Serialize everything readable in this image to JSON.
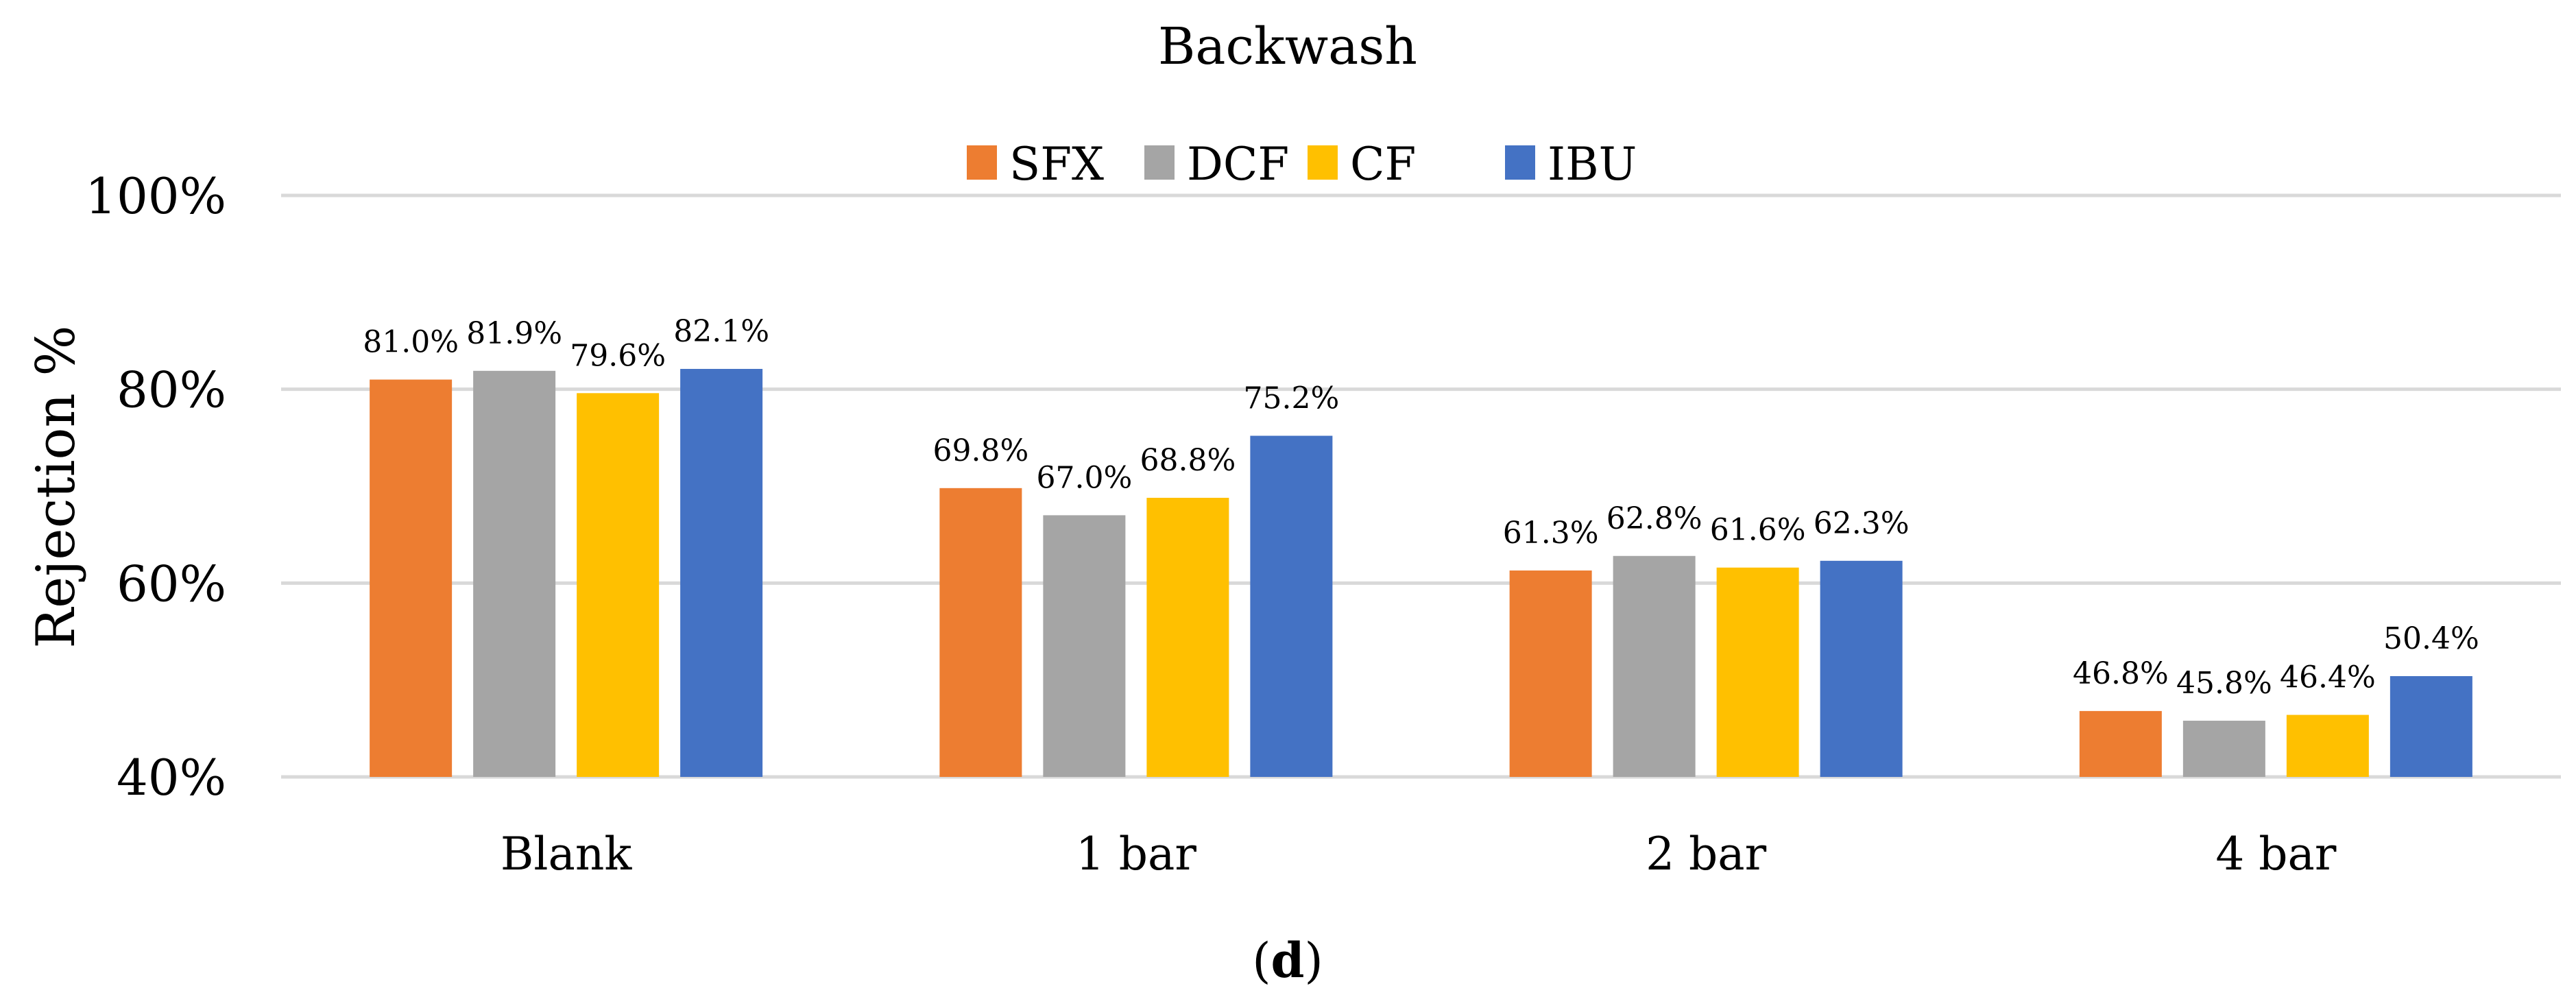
{
  "chart_data": {
    "type": "bar",
    "title": "Backwash",
    "caption": "(d)",
    "xlabel": "",
    "ylabel": "Rejection %",
    "ylim": [
      40,
      100
    ],
    "yticks": [
      40,
      60,
      80,
      100
    ],
    "ytick_labels": [
      "40%",
      "60%",
      "80%",
      "100%"
    ],
    "grid": true,
    "legend_position": "top-center",
    "categories": [
      "Blank",
      "1 bar",
      "2 bar",
      "4 bar"
    ],
    "series": [
      {
        "name": "SFX",
        "color": "#ED7D31",
        "values": [
          81.0,
          69.8,
          61.3,
          46.8
        ],
        "labels": [
          "81.0%",
          "69.8%",
          "61.3%",
          "46.8%"
        ]
      },
      {
        "name": "DCF",
        "color": "#A5A5A5",
        "values": [
          81.9,
          67.0,
          62.8,
          45.8
        ],
        "labels": [
          "81.9%",
          "67.0%",
          "62.8%",
          "45.8%"
        ]
      },
      {
        "name": "CF",
        "color": "#FFC000",
        "values": [
          79.6,
          68.8,
          61.6,
          46.4
        ],
        "labels": [
          "79.6%",
          "68.8%",
          "61.6%",
          "46.4%"
        ]
      },
      {
        "name": "IBU",
        "color": "#4472C4",
        "values": [
          82.1,
          75.2,
          62.3,
          50.4
        ],
        "labels": [
          "82.1%",
          "75.2%",
          "62.3%",
          "50.4%"
        ]
      }
    ]
  }
}
